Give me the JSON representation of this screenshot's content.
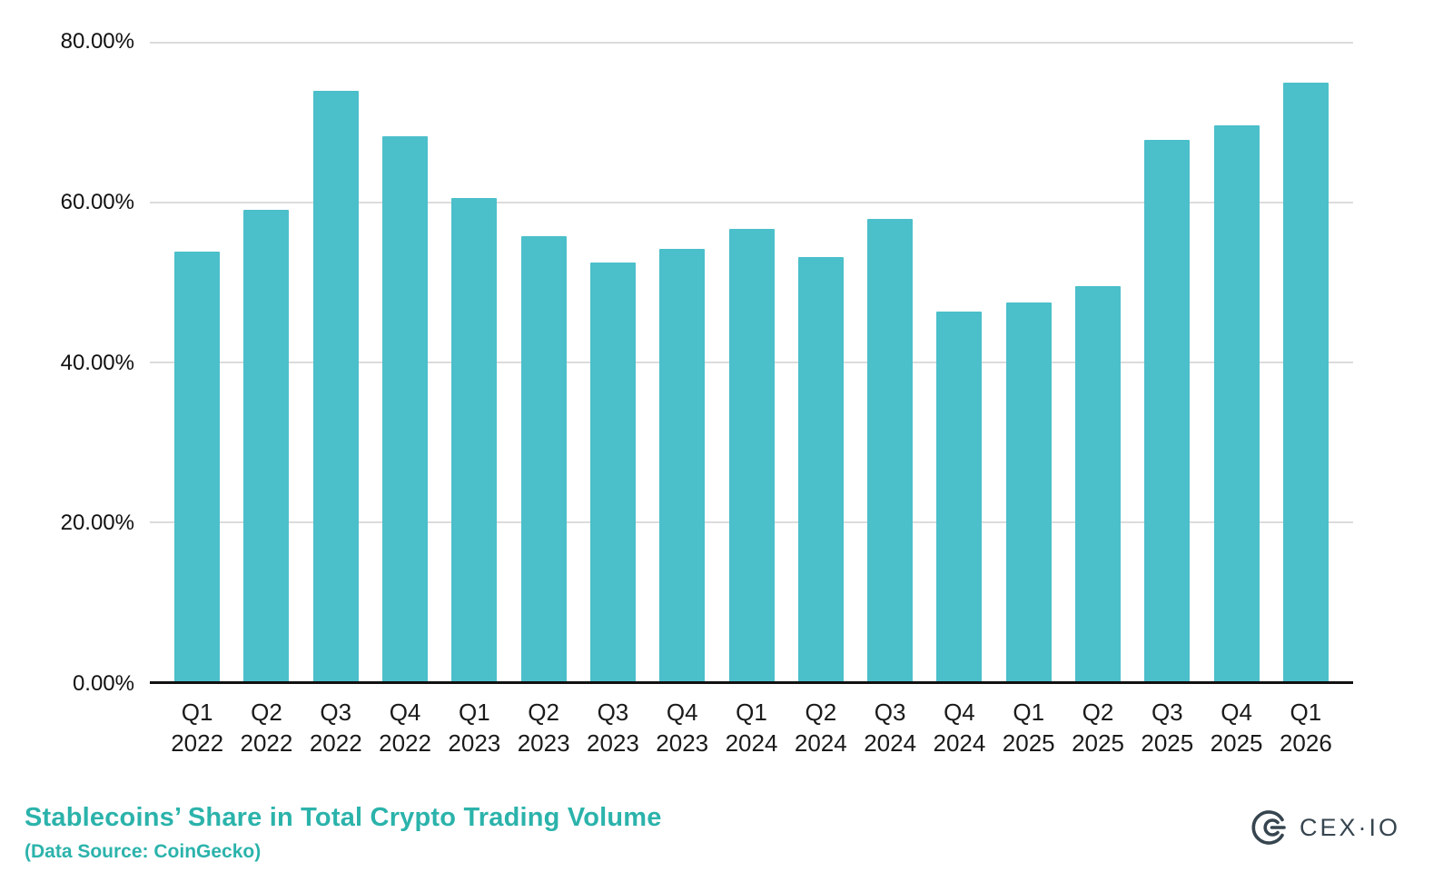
{
  "chart_data": {
    "type": "bar",
    "title": "Stablecoins’ Share in Total Crypto Trading Volume",
    "subtitle": "(Data Source: CoinGecko)",
    "categories": [
      {
        "quarter": "Q1",
        "year": "2022"
      },
      {
        "quarter": "Q2",
        "year": "2022"
      },
      {
        "quarter": "Q3",
        "year": "2022"
      },
      {
        "quarter": "Q4",
        "year": "2022"
      },
      {
        "quarter": "Q1",
        "year": "2023"
      },
      {
        "quarter": "Q2",
        "year": "2023"
      },
      {
        "quarter": "Q3",
        "year": "2023"
      },
      {
        "quarter": "Q4",
        "year": "2023"
      },
      {
        "quarter": "Q1",
        "year": "2024"
      },
      {
        "quarter": "Q2",
        "year": "2024"
      },
      {
        "quarter": "Q3",
        "year": "2024"
      },
      {
        "quarter": "Q4",
        "year": "2024"
      },
      {
        "quarter": "Q1",
        "year": "2025"
      },
      {
        "quarter": "Q2",
        "year": "2025"
      },
      {
        "quarter": "Q3",
        "year": "2025"
      },
      {
        "quarter": "Q4",
        "year": "2025"
      },
      {
        "quarter": "Q1",
        "year": "2026"
      }
    ],
    "values": [
      53.8,
      59.0,
      73.9,
      68.2,
      60.4,
      55.7,
      52.4,
      54.1,
      56.6,
      53.1,
      57.8,
      46.2,
      47.4,
      49.4,
      67.7,
      69.6,
      74.9
    ],
    "ylim": [
      0,
      80
    ],
    "yticks": [
      {
        "value": 0,
        "label": "0.00%"
      },
      {
        "value": 20,
        "label": "20.00%"
      },
      {
        "value": 40,
        "label": "40.00%"
      },
      {
        "value": 60,
        "label": "60.00%"
      },
      {
        "value": 80,
        "label": "80.00%"
      }
    ],
    "xlabel": "",
    "ylabel": "",
    "grid": true,
    "legend": false,
    "bar_color": "#4BBFCA",
    "accent_color": "#2BB3AB"
  },
  "branding": {
    "logo_text": "CEX·IO",
    "logo_color": "#36454F"
  }
}
